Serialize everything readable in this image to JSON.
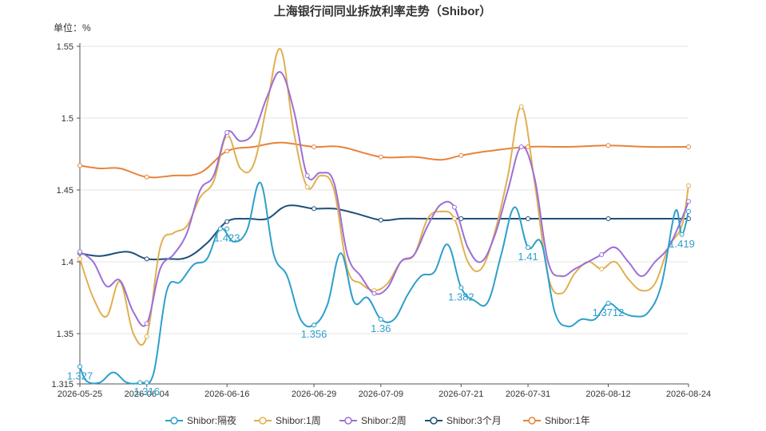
{
  "chart_data": {
    "type": "line",
    "title": "上海银行间同业拆放利率走势（Shibor）",
    "unit_label": "单位：%",
    "ylim": [
      1.315,
      1.55
    ],
    "y_ticks": [
      1.315,
      1.35,
      1.4,
      1.45,
      1.5,
      1.55
    ],
    "x_range": [
      "2026-05-25",
      "2026-08-24"
    ],
    "x_ticks": [
      "2026-05-25",
      "2026-06-04",
      "2026-06-16",
      "2026-06-29",
      "2026-07-09",
      "2026-07-21",
      "2026-07-31",
      "2026-08-12",
      "2026-08-24"
    ],
    "grid": true,
    "legend_position": "bottom",
    "series": [
      {
        "name": "Shibor:隔夜",
        "color": "#2e9fcb",
        "points": [
          [
            "2026-05-25",
            1.327
          ],
          [
            "2026-05-26",
            1.317
          ],
          [
            "2026-05-28",
            1.316
          ],
          [
            "2026-05-30",
            1.323
          ],
          [
            "2026-06-01",
            1.316
          ],
          [
            "2026-06-03",
            1.316
          ],
          [
            "2026-06-05",
            1.322
          ],
          [
            "2026-06-07",
            1.38
          ],
          [
            "2026-06-09",
            1.386
          ],
          [
            "2026-06-11",
            1.398
          ],
          [
            "2026-06-13",
            1.402
          ],
          [
            "2026-06-15",
            1.423
          ],
          [
            "2026-06-17",
            1.414
          ],
          [
            "2026-06-19",
            1.422
          ],
          [
            "2026-06-21",
            1.455
          ],
          [
            "2026-06-23",
            1.405
          ],
          [
            "2026-06-25",
            1.39
          ],
          [
            "2026-06-27",
            1.36
          ],
          [
            "2026-06-29",
            1.356
          ],
          [
            "2026-07-01",
            1.37
          ],
          [
            "2026-07-03",
            1.406
          ],
          [
            "2026-07-05",
            1.372
          ],
          [
            "2026-07-07",
            1.375
          ],
          [
            "2026-07-09",
            1.36
          ],
          [
            "2026-07-11",
            1.36
          ],
          [
            "2026-07-13",
            1.377
          ],
          [
            "2026-07-15",
            1.39
          ],
          [
            "2026-07-17",
            1.393
          ],
          [
            "2026-07-19",
            1.412
          ],
          [
            "2026-07-21",
            1.382
          ],
          [
            "2026-07-23",
            1.373
          ],
          [
            "2026-07-25",
            1.372
          ],
          [
            "2026-07-27",
            1.405
          ],
          [
            "2026-07-29",
            1.438
          ],
          [
            "2026-07-31",
            1.41
          ],
          [
            "2026-08-02",
            1.413
          ],
          [
            "2026-08-04",
            1.365
          ],
          [
            "2026-08-06",
            1.355
          ],
          [
            "2026-08-08",
            1.36
          ],
          [
            "2026-08-10",
            1.36
          ],
          [
            "2026-08-12",
            1.371
          ],
          [
            "2026-08-14",
            1.365
          ],
          [
            "2026-08-16",
            1.362
          ],
          [
            "2026-08-18",
            1.365
          ],
          [
            "2026-08-20",
            1.385
          ],
          [
            "2026-08-22",
            1.435
          ],
          [
            "2026-08-23",
            1.419
          ],
          [
            "2026-08-24",
            1.435
          ]
        ],
        "labels": [
          {
            "x": "2026-05-25",
            "y": 1.327,
            "text": "1.327"
          },
          {
            "x": "2026-06-04",
            "y": 1.316,
            "text": "1.316"
          },
          {
            "x": "2026-06-16",
            "y": 1.423,
            "text": "1.423"
          },
          {
            "x": "2026-06-29",
            "y": 1.356,
            "text": "1.356"
          },
          {
            "x": "2026-07-09",
            "y": 1.36,
            "text": "1.36"
          },
          {
            "x": "2026-07-21",
            "y": 1.382,
            "text": "1.382"
          },
          {
            "x": "2026-07-31",
            "y": 1.41,
            "text": "1.41"
          },
          {
            "x": "2026-08-12",
            "y": 1.3712,
            "text": "1.3712"
          },
          {
            "x": "2026-08-23",
            "y": 1.419,
            "text": "1.419"
          }
        ]
      },
      {
        "name": "Shibor:1周",
        "color": "#e0b050",
        "points": [
          [
            "2026-05-25",
            1.402
          ],
          [
            "2026-05-27",
            1.375
          ],
          [
            "2026-05-29",
            1.362
          ],
          [
            "2026-05-31",
            1.386
          ],
          [
            "2026-06-02",
            1.35
          ],
          [
            "2026-06-04",
            1.348
          ],
          [
            "2026-06-06",
            1.41
          ],
          [
            "2026-06-08",
            1.42
          ],
          [
            "2026-06-10",
            1.425
          ],
          [
            "2026-06-12",
            1.445
          ],
          [
            "2026-06-14",
            1.456
          ],
          [
            "2026-06-16",
            1.488
          ],
          [
            "2026-06-18",
            1.465
          ],
          [
            "2026-06-20",
            1.468
          ],
          [
            "2026-06-22",
            1.51
          ],
          [
            "2026-06-24",
            1.548
          ],
          [
            "2026-06-26",
            1.49
          ],
          [
            "2026-06-28",
            1.452
          ],
          [
            "2026-06-30",
            1.46
          ],
          [
            "2026-07-02",
            1.45
          ],
          [
            "2026-07-04",
            1.395
          ],
          [
            "2026-07-06",
            1.385
          ],
          [
            "2026-07-08",
            1.38
          ],
          [
            "2026-07-10",
            1.385
          ],
          [
            "2026-07-12",
            1.4
          ],
          [
            "2026-07-14",
            1.405
          ],
          [
            "2026-07-16",
            1.43
          ],
          [
            "2026-07-18",
            1.435
          ],
          [
            "2026-07-20",
            1.43
          ],
          [
            "2026-07-22",
            1.4
          ],
          [
            "2026-07-24",
            1.395
          ],
          [
            "2026-07-26",
            1.42
          ],
          [
            "2026-07-28",
            1.46
          ],
          [
            "2026-07-30",
            1.508
          ],
          [
            "2026-08-01",
            1.455
          ],
          [
            "2026-08-03",
            1.39
          ],
          [
            "2026-08-05",
            1.378
          ],
          [
            "2026-08-07",
            1.392
          ],
          [
            "2026-08-09",
            1.4
          ],
          [
            "2026-08-11",
            1.395
          ],
          [
            "2026-08-13",
            1.4
          ],
          [
            "2026-08-15",
            1.388
          ],
          [
            "2026-08-17",
            1.38
          ],
          [
            "2026-08-19",
            1.385
          ],
          [
            "2026-08-21",
            1.41
          ],
          [
            "2026-08-23",
            1.425
          ],
          [
            "2026-08-24",
            1.453
          ]
        ],
        "labels": []
      },
      {
        "name": "Shibor:2周",
        "color": "#9b6fd6",
        "points": [
          [
            "2026-05-25",
            1.407
          ],
          [
            "2026-05-27",
            1.4
          ],
          [
            "2026-05-29",
            1.383
          ],
          [
            "2026-05-31",
            1.387
          ],
          [
            "2026-06-02",
            1.365
          ],
          [
            "2026-06-04",
            1.357
          ],
          [
            "2026-06-06",
            1.395
          ],
          [
            "2026-06-08",
            1.405
          ],
          [
            "2026-06-10",
            1.42
          ],
          [
            "2026-06-12",
            1.45
          ],
          [
            "2026-06-14",
            1.46
          ],
          [
            "2026-06-16",
            1.49
          ],
          [
            "2026-06-18",
            1.484
          ],
          [
            "2026-06-20",
            1.49
          ],
          [
            "2026-06-22",
            1.515
          ],
          [
            "2026-06-24",
            1.532
          ],
          [
            "2026-06-26",
            1.505
          ],
          [
            "2026-06-28",
            1.46
          ],
          [
            "2026-06-30",
            1.462
          ],
          [
            "2026-07-02",
            1.455
          ],
          [
            "2026-07-04",
            1.405
          ],
          [
            "2026-07-06",
            1.39
          ],
          [
            "2026-07-08",
            1.378
          ],
          [
            "2026-07-10",
            1.382
          ],
          [
            "2026-07-12",
            1.4
          ],
          [
            "2026-07-14",
            1.405
          ],
          [
            "2026-07-16",
            1.425
          ],
          [
            "2026-07-18",
            1.44
          ],
          [
            "2026-07-20",
            1.438
          ],
          [
            "2026-07-22",
            1.41
          ],
          [
            "2026-07-24",
            1.4
          ],
          [
            "2026-07-26",
            1.418
          ],
          [
            "2026-07-28",
            1.45
          ],
          [
            "2026-07-30",
            1.48
          ],
          [
            "2026-08-01",
            1.458
          ],
          [
            "2026-08-03",
            1.4
          ],
          [
            "2026-08-05",
            1.39
          ],
          [
            "2026-08-07",
            1.395
          ],
          [
            "2026-08-09",
            1.4
          ],
          [
            "2026-08-11",
            1.405
          ],
          [
            "2026-08-13",
            1.41
          ],
          [
            "2026-08-15",
            1.4
          ],
          [
            "2026-08-17",
            1.39
          ],
          [
            "2026-08-19",
            1.4
          ],
          [
            "2026-08-21",
            1.41
          ],
          [
            "2026-08-23",
            1.43
          ],
          [
            "2026-08-24",
            1.442
          ]
        ],
        "labels": []
      },
      {
        "name": "Shibor:3个月",
        "color": "#1e4f7a",
        "points": [
          [
            "2026-05-25",
            1.406
          ],
          [
            "2026-05-28",
            1.404
          ],
          [
            "2026-06-01",
            1.407
          ],
          [
            "2026-06-04",
            1.402
          ],
          [
            "2026-06-07",
            1.402
          ],
          [
            "2026-06-10",
            1.403
          ],
          [
            "2026-06-13",
            1.413
          ],
          [
            "2026-06-16",
            1.428
          ],
          [
            "2026-06-19",
            1.43
          ],
          [
            "2026-06-22",
            1.43
          ],
          [
            "2026-06-25",
            1.439
          ],
          [
            "2026-06-29",
            1.437
          ],
          [
            "2026-07-02",
            1.437
          ],
          [
            "2026-07-05",
            1.434
          ],
          [
            "2026-07-09",
            1.429
          ],
          [
            "2026-07-12",
            1.43
          ],
          [
            "2026-07-15",
            1.43
          ],
          [
            "2026-07-18",
            1.43
          ],
          [
            "2026-07-21",
            1.43
          ],
          [
            "2026-07-25",
            1.43
          ],
          [
            "2026-07-28",
            1.43
          ],
          [
            "2026-07-31",
            1.43
          ],
          [
            "2026-08-04",
            1.43
          ],
          [
            "2026-08-08",
            1.43
          ],
          [
            "2026-08-12",
            1.43
          ],
          [
            "2026-08-16",
            1.43
          ],
          [
            "2026-08-20",
            1.43
          ],
          [
            "2026-08-24",
            1.43
          ]
        ],
        "labels": []
      },
      {
        "name": "Shibor:1年",
        "color": "#e8823a",
        "points": [
          [
            "2026-05-25",
            1.467
          ],
          [
            "2026-05-28",
            1.465
          ],
          [
            "2026-05-31",
            1.465
          ],
          [
            "2026-06-04",
            1.459
          ],
          [
            "2026-06-08",
            1.46
          ],
          [
            "2026-06-12",
            1.462
          ],
          [
            "2026-06-16",
            1.477
          ],
          [
            "2026-06-20",
            1.48
          ],
          [
            "2026-06-24",
            1.483
          ],
          [
            "2026-06-29",
            1.48
          ],
          [
            "2026-07-03",
            1.48
          ],
          [
            "2026-07-09",
            1.473
          ],
          [
            "2026-07-14",
            1.473
          ],
          [
            "2026-07-18",
            1.471
          ],
          [
            "2026-07-21",
            1.474
          ],
          [
            "2026-07-25",
            1.477
          ],
          [
            "2026-07-31",
            1.48
          ],
          [
            "2026-08-06",
            1.48
          ],
          [
            "2026-08-12",
            1.481
          ],
          [
            "2026-08-18",
            1.48
          ],
          [
            "2026-08-24",
            1.48
          ]
        ],
        "labels": []
      }
    ]
  }
}
